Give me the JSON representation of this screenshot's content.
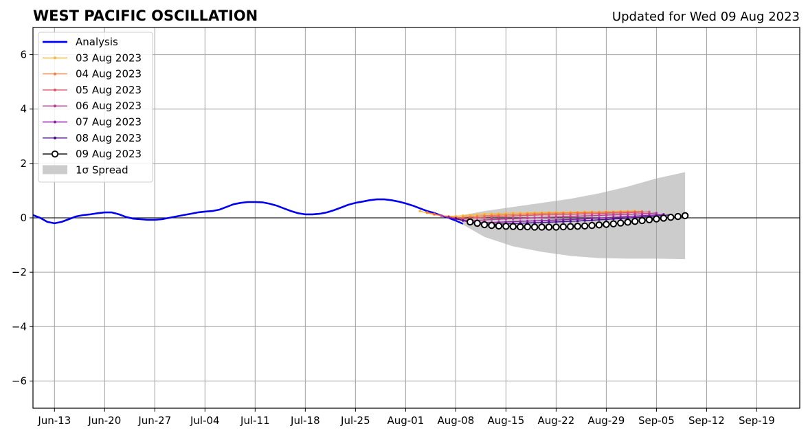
{
  "chart_data": {
    "type": "line",
    "title": "WEST PACIFIC OSCILLATION",
    "subtitle": "Updated for Wed 09 Aug 2023",
    "xlabel": "",
    "ylabel": "",
    "x_ticks": [
      "Jun-13",
      "Jun-20",
      "Jun-27",
      "Jul-04",
      "Jul-11",
      "Jul-18",
      "Jul-25",
      "Aug-01",
      "Aug-08",
      "Aug-15",
      "Aug-22",
      "Aug-29",
      "Sep-05",
      "Sep-12",
      "Sep-19"
    ],
    "y_ticks": [
      "6",
      "4",
      "2",
      "0",
      "−2",
      "−4",
      "−6"
    ],
    "xlim": [
      "2023-06-10",
      "2023-09-25"
    ],
    "ylim": [
      -7,
      7
    ],
    "grid": true,
    "legend_position": "top-left",
    "series": [
      {
        "name": "Analysis",
        "color": "#0000ee",
        "style": "line",
        "points": [
          [
            "2023-06-10",
            0.1
          ],
          [
            "2023-06-11",
            0.0
          ],
          [
            "2023-06-12",
            -0.15
          ],
          [
            "2023-06-13",
            -0.2
          ],
          [
            "2023-06-14",
            -0.15
          ],
          [
            "2023-06-15",
            -0.05
          ],
          [
            "2023-06-16",
            0.05
          ],
          [
            "2023-06-17",
            0.1
          ],
          [
            "2023-06-18",
            0.13
          ],
          [
            "2023-06-19",
            0.17
          ],
          [
            "2023-06-20",
            0.2
          ],
          [
            "2023-06-21",
            0.2
          ],
          [
            "2023-06-22",
            0.13
          ],
          [
            "2023-06-23",
            0.03
          ],
          [
            "2023-06-24",
            -0.03
          ],
          [
            "2023-06-25",
            -0.05
          ],
          [
            "2023-06-26",
            -0.07
          ],
          [
            "2023-06-27",
            -0.07
          ],
          [
            "2023-06-28",
            -0.05
          ],
          [
            "2023-06-29",
            0.0
          ],
          [
            "2023-06-30",
            0.05
          ],
          [
            "2023-07-01",
            0.1
          ],
          [
            "2023-07-02",
            0.15
          ],
          [
            "2023-07-03",
            0.2
          ],
          [
            "2023-07-04",
            0.23
          ],
          [
            "2023-07-05",
            0.25
          ],
          [
            "2023-07-06",
            0.3
          ],
          [
            "2023-07-07",
            0.4
          ],
          [
            "2023-07-08",
            0.5
          ],
          [
            "2023-07-09",
            0.55
          ],
          [
            "2023-07-10",
            0.58
          ],
          [
            "2023-07-11",
            0.58
          ],
          [
            "2023-07-12",
            0.57
          ],
          [
            "2023-07-13",
            0.52
          ],
          [
            "2023-07-14",
            0.45
          ],
          [
            "2023-07-15",
            0.35
          ],
          [
            "2023-07-16",
            0.25
          ],
          [
            "2023-07-17",
            0.17
          ],
          [
            "2023-07-18",
            0.13
          ],
          [
            "2023-07-19",
            0.13
          ],
          [
            "2023-07-20",
            0.15
          ],
          [
            "2023-07-21",
            0.2
          ],
          [
            "2023-07-22",
            0.28
          ],
          [
            "2023-07-23",
            0.38
          ],
          [
            "2023-07-24",
            0.48
          ],
          [
            "2023-07-25",
            0.55
          ],
          [
            "2023-07-26",
            0.6
          ],
          [
            "2023-07-27",
            0.65
          ],
          [
            "2023-07-28",
            0.68
          ],
          [
            "2023-07-29",
            0.68
          ],
          [
            "2023-07-30",
            0.65
          ],
          [
            "2023-07-31",
            0.6
          ],
          [
            "2023-08-01",
            0.53
          ],
          [
            "2023-08-02",
            0.45
          ],
          [
            "2023-08-03",
            0.35
          ],
          [
            "2023-08-04",
            0.25
          ],
          [
            "2023-08-05",
            0.18
          ],
          [
            "2023-08-06",
            0.08
          ],
          [
            "2023-08-07",
            0.0
          ],
          [
            "2023-08-08",
            -0.1
          ],
          [
            "2023-08-09",
            -0.22
          ]
        ]
      },
      {
        "name": "03 Aug 2023",
        "color": "#fdb53f",
        "style": "dots",
        "start": "2023-08-03",
        "end": "2023-09-02",
        "values": [
          0.25,
          0.18,
          0.12,
          0.08,
          0.06,
          0.06,
          0.08,
          0.1,
          0.12,
          0.14,
          0.15,
          0.16,
          0.17,
          0.18,
          0.18,
          0.18,
          0.19,
          0.19,
          0.2,
          0.2,
          0.2,
          0.21,
          0.21,
          0.22,
          0.22,
          0.22,
          0.23,
          0.23,
          0.24,
          0.24,
          0.25
        ]
      },
      {
        "name": "04 Aug 2023",
        "color": "#f5813a",
        "style": "dots",
        "start": "2023-08-04",
        "end": "2023-09-03",
        "values": [
          0.2,
          0.14,
          0.08,
          0.04,
          0.02,
          0.02,
          0.04,
          0.06,
          0.08,
          0.09,
          0.1,
          0.11,
          0.12,
          0.13,
          0.14,
          0.15,
          0.16,
          0.17,
          0.17,
          0.18,
          0.18,
          0.19,
          0.19,
          0.2,
          0.2,
          0.21,
          0.21,
          0.22,
          0.22,
          0.23,
          0.24
        ]
      },
      {
        "name": "05 Aug 2023",
        "color": "#e0596a",
        "style": "dots",
        "start": "2023-08-05",
        "end": "2023-09-04",
        "values": [
          0.15,
          0.08,
          0.02,
          -0.02,
          -0.03,
          -0.02,
          0.0,
          0.02,
          0.04,
          0.05,
          0.06,
          0.07,
          0.08,
          0.09,
          0.1,
          0.11,
          0.11,
          0.12,
          0.13,
          0.13,
          0.14,
          0.15,
          0.15,
          0.16,
          0.17,
          0.18,
          0.18,
          0.19,
          0.2,
          0.21,
          0.22
        ]
      },
      {
        "name": "06 Aug 2023",
        "color": "#bf3b95",
        "style": "dots",
        "start": "2023-08-06",
        "end": "2023-09-05",
        "values": [
          0.08,
          0.02,
          -0.04,
          -0.08,
          -0.09,
          -0.09,
          -0.08,
          -0.06,
          -0.05,
          -0.04,
          -0.03,
          -0.02,
          -0.01,
          0.0,
          0.01,
          0.02,
          0.03,
          0.04,
          0.05,
          0.06,
          0.07,
          0.08,
          0.09,
          0.1,
          0.11,
          0.12,
          0.13,
          0.14,
          0.15,
          0.16,
          0.18
        ]
      },
      {
        "name": "07 Aug 2023",
        "color": "#8e1fa4",
        "style": "dots",
        "start": "2023-08-07",
        "end": "2023-09-06",
        "values": [
          0.03,
          -0.04,
          -0.1,
          -0.14,
          -0.16,
          -0.17,
          -0.17,
          -0.16,
          -0.15,
          -0.14,
          -0.13,
          -0.12,
          -0.11,
          -0.1,
          -0.09,
          -0.08,
          -0.07,
          -0.06,
          -0.05,
          -0.04,
          -0.02,
          -0.01,
          0.0,
          0.02,
          0.03,
          0.05,
          0.06,
          0.08,
          0.09,
          0.11,
          0.13
        ]
      },
      {
        "name": "08 Aug 2023",
        "color": "#4b0f8f",
        "style": "dots",
        "start": "2023-08-08",
        "end": "2023-09-07",
        "values": [
          -0.02,
          -0.1,
          -0.16,
          -0.2,
          -0.22,
          -0.23,
          -0.23,
          -0.22,
          -0.21,
          -0.2,
          -0.19,
          -0.18,
          -0.17,
          -0.16,
          -0.15,
          -0.14,
          -0.13,
          -0.12,
          -0.1,
          -0.09,
          -0.07,
          -0.06,
          -0.04,
          -0.03,
          -0.01,
          0.01,
          0.03,
          0.05,
          0.07,
          0.09,
          0.11
        ]
      },
      {
        "name": "09 Aug 2023",
        "color": "#000000",
        "style": "circles",
        "start": "2023-08-10",
        "end": "2023-09-09",
        "values": [
          -0.15,
          -0.2,
          -0.25,
          -0.28,
          -0.3,
          -0.31,
          -0.32,
          -0.33,
          -0.33,
          -0.34,
          -0.34,
          -0.34,
          -0.34,
          -0.33,
          -0.32,
          -0.31,
          -0.3,
          -0.28,
          -0.26,
          -0.24,
          -0.22,
          -0.19,
          -0.16,
          -0.13,
          -0.1,
          -0.07,
          -0.04,
          -0.01,
          0.02,
          0.05,
          0.08
        ]
      }
    ],
    "spread": {
      "name": "1σ Spread",
      "color": "#cccccc",
      "start": "2023-08-09",
      "end": "2023-09-09",
      "points": [
        [
          "2023-08-09",
          -0.25,
          0.1
        ],
        [
          "2023-08-12",
          -0.7,
          0.25
        ],
        [
          "2023-08-16",
          -1.05,
          0.4
        ],
        [
          "2023-08-20",
          -1.25,
          0.55
        ],
        [
          "2023-08-24",
          -1.4,
          0.7
        ],
        [
          "2023-08-28",
          -1.48,
          0.9
        ],
        [
          "2023-09-01",
          -1.5,
          1.15
        ],
        [
          "2023-09-05",
          -1.5,
          1.45
        ],
        [
          "2023-09-09",
          -1.52,
          1.68
        ]
      ]
    }
  }
}
